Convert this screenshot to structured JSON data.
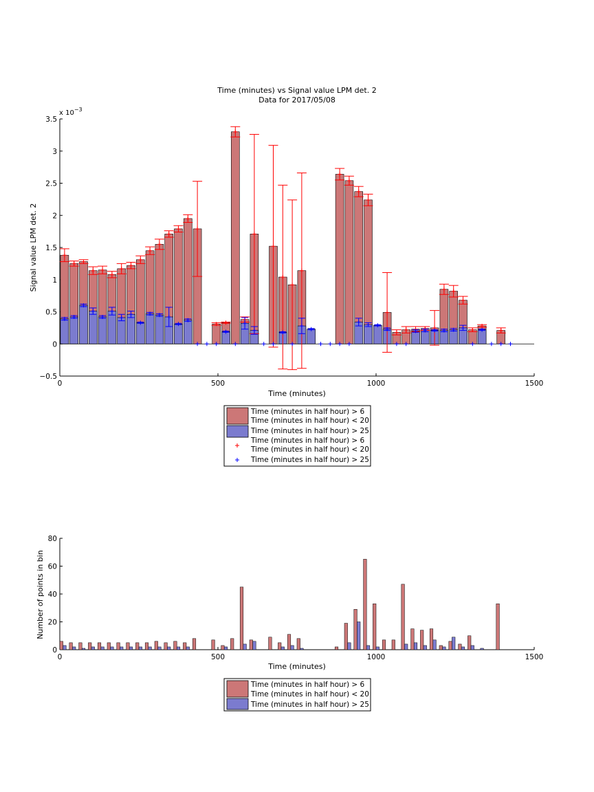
{
  "chart_data": [
    {
      "type": "bar",
      "title": "Time (minutes) vs Signal value LPM det. 2",
      "subtitle": "Data for 2017/05/08",
      "xlabel": "Time (minutes)",
      "ylabel": "Signal value LPM det. 2",
      "exponent_label": "x 10",
      "exponent_power": "−3",
      "xlim": [
        0,
        1500
      ],
      "ylim": [
        -0.5,
        3.5
      ],
      "xticks": [
        0,
        500,
        1000,
        1500
      ],
      "yticks": [
        -0.5,
        0,
        0.5,
        1,
        1.5,
        2,
        2.5,
        3,
        3.5
      ],
      "ytick_labels": [
        "−0.5",
        "0",
        "0.5",
        "1",
        "1.5",
        "2",
        "2.5",
        "3",
        "3.5"
      ],
      "legend": [
        {
          "lines": [
            "Time (minutes in half hour) > 6",
            "Time (minutes in half hour) < 20"
          ],
          "marker": "bar",
          "color": "#cc7777"
        },
        {
          "lines": [
            "Time (minutes in half hour) > 25"
          ],
          "marker": "bar",
          "color": "#7b7bcf"
        },
        {
          "lines": [
            "Time (minutes in half hour) > 6",
            "Time (minutes in half hour) < 20"
          ],
          "marker": "plus",
          "color": "#ff0000"
        },
        {
          "lines": [
            "Time (minutes in half hour) > 25"
          ],
          "marker": "plus",
          "color": "#0000ff"
        }
      ],
      "legend_placement": "below",
      "series": [
        {
          "color": "#cc7777",
          "error_color": "#ff0000",
          "x": [
            15,
            45,
            75,
            105,
            135,
            165,
            195,
            225,
            255,
            285,
            315,
            345,
            375,
            405,
            435,
            495,
            525,
            555,
            585,
            615,
            675,
            705,
            735,
            765,
            885,
            915,
            945,
            975,
            1035,
            1065,
            1095,
            1125,
            1155,
            1185,
            1215,
            1245,
            1275,
            1305,
            1335,
            1395
          ],
          "y": [
            1.38,
            1.25,
            1.28,
            1.14,
            1.15,
            1.08,
            1.17,
            1.22,
            1.31,
            1.45,
            1.55,
            1.71,
            1.79,
            1.95,
            1.79,
            0.31,
            0.33,
            3.3,
            0.38,
            1.71,
            1.52,
            1.04,
            0.92,
            1.14,
            2.64,
            2.54,
            2.37,
            2.24,
            0.49,
            0.18,
            0.22,
            0.23,
            0.24,
            0.25,
            0.85,
            0.82,
            0.68,
            0.22,
            0.28,
            0.21
          ],
          "err": [
            0.1,
            0.04,
            0.03,
            0.06,
            0.06,
            0.05,
            0.08,
            0.05,
            0.06,
            0.06,
            0.08,
            0.05,
            0.05,
            0.06,
            0.74,
            0.02,
            0.01,
            0.08,
            0.04,
            1.55,
            1.57,
            1.43,
            1.32,
            1.52,
            0.09,
            0.07,
            0.08,
            0.09,
            0.62,
            0.04,
            0.05,
            0.04,
            0.03,
            0.27,
            0.08,
            0.09,
            0.06,
            0.03,
            0.02,
            0.04
          ]
        },
        {
          "color": "#7b7bcf",
          "error_color": "#0000ff",
          "x": [
            15,
            45,
            75,
            105,
            135,
            165,
            195,
            225,
            255,
            285,
            315,
            345,
            375,
            405,
            435,
            465,
            495,
            525,
            555,
            585,
            615,
            645,
            675,
            705,
            735,
            765,
            795,
            825,
            855,
            885,
            915,
            945,
            975,
            1005,
            1035,
            1065,
            1095,
            1125,
            1155,
            1185,
            1215,
            1245,
            1275,
            1305,
            1335,
            1365,
            1395,
            1425
          ],
          "y": [
            0.39,
            0.42,
            0.6,
            0.51,
            0.42,
            0.51,
            0.41,
            0.46,
            0.33,
            0.47,
            0.45,
            0.42,
            0.31,
            0.37,
            0,
            0,
            0,
            0.19,
            0,
            0.32,
            0.21,
            0,
            0,
            0.18,
            0,
            0.28,
            0.23,
            0,
            0,
            0,
            0,
            0.34,
            0.3,
            0.29,
            0.23,
            0,
            0,
            0.2,
            0.21,
            0.21,
            0.21,
            0.22,
            0.25,
            0,
            0.22,
            0,
            0,
            0
          ],
          "err": [
            0.02,
            0.02,
            0.02,
            0.05,
            0.02,
            0.06,
            0.05,
            0.05,
            0.01,
            0.02,
            0.02,
            0.15,
            0.01,
            0.02,
            0,
            0,
            0,
            0.01,
            0,
            0.09,
            0.06,
            0,
            0,
            0.01,
            0,
            0.12,
            0.01,
            0,
            0,
            0,
            0,
            0.06,
            0.03,
            0.01,
            0.02,
            0,
            0,
            0.02,
            0.02,
            0.01,
            0.02,
            0.02,
            0.04,
            0,
            0.01,
            0,
            0,
            0
          ]
        }
      ]
    },
    {
      "type": "bar",
      "xlabel": "Time (minutes)",
      "ylabel": "Number of points in bin",
      "xlim": [
        0,
        1500
      ],
      "ylim": [
        0,
        80
      ],
      "xticks": [
        0,
        500,
        1000,
        1500
      ],
      "yticks": [
        0,
        20,
        40,
        60,
        80
      ],
      "legend": [
        {
          "lines": [
            "Time (minutes in half hour) > 6",
            "Time (minutes in half hour) < 20"
          ],
          "marker": "bar",
          "color": "#cc7777"
        },
        {
          "lines": [
            "Time (minutes in half hour) > 25"
          ],
          "marker": "bar",
          "color": "#7b7bcf"
        }
      ],
      "legend_placement": "below",
      "series": [
        {
          "color": "#cc7777",
          "x": [
            5,
            35,
            65,
            95,
            125,
            155,
            185,
            215,
            245,
            275,
            305,
            335,
            365,
            395,
            425,
            485,
            515,
            545,
            575,
            605,
            665,
            695,
            725,
            755,
            875,
            905,
            935,
            965,
            995,
            1025,
            1055,
            1085,
            1115,
            1145,
            1175,
            1205,
            1235,
            1265,
            1295,
            1385
          ],
          "y": [
            6,
            5,
            5,
            5,
            5,
            5,
            5,
            5,
            5,
            5,
            6,
            5,
            6,
            5,
            8,
            7,
            3,
            8,
            45,
            7,
            9,
            5,
            11,
            8,
            2,
            19,
            29,
            65,
            33,
            7,
            7,
            47,
            15,
            14,
            15,
            3,
            6,
            4,
            10,
            33
          ]
        },
        {
          "color": "#7b7bcf",
          "x": [
            15,
            45,
            75,
            105,
            135,
            165,
            195,
            225,
            255,
            285,
            315,
            345,
            375,
            405,
            525,
            585,
            615,
            705,
            735,
            765,
            915,
            945,
            975,
            1005,
            1095,
            1125,
            1155,
            1185,
            1215,
            1245,
            1275,
            1305,
            1335
          ],
          "y": [
            3,
            2,
            1,
            2,
            2,
            2,
            2,
            2,
            2,
            2,
            2,
            2,
            2,
            2,
            2,
            4,
            6,
            2,
            3,
            1,
            5,
            20,
            3,
            2,
            4,
            5,
            3,
            7,
            2,
            9,
            2,
            3,
            1
          ]
        }
      ]
    }
  ]
}
